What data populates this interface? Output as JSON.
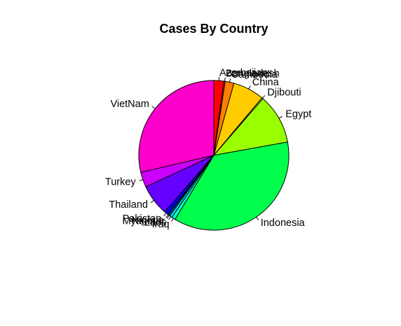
{
  "chart_data": {
    "type": "pie",
    "title": "Cases By Country",
    "start": "12 o'clock",
    "direction": "clockwise",
    "slices": [
      {
        "label": "Azerbaijan",
        "value": 8,
        "color": "#FF0000"
      },
      {
        "label": "Bangladesh",
        "value": 1,
        "color": "#FF3300"
      },
      {
        "label": "Cambodia",
        "value": 7,
        "color": "#FF8000"
      },
      {
        "label": "China",
        "value": 25,
        "color": "#FFCC00"
      },
      {
        "label": "Djibouti",
        "value": 1,
        "color": "#E6FF00"
      },
      {
        "label": "Egypt",
        "value": 40,
        "color": "#99FF00"
      },
      {
        "label": "Indonesia",
        "value": 135,
        "color": "#00FF4D"
      },
      {
        "label": "Iraq",
        "value": 3,
        "color": "#00FFCC"
      },
      {
        "label": "Laos",
        "value": 2,
        "color": "#00E6FF"
      },
      {
        "label": "Myanmar",
        "value": 1,
        "color": "#0099FF"
      },
      {
        "label": "Nigeria",
        "value": 1,
        "color": "#004DFF"
      },
      {
        "label": "Pakistan",
        "value": 3,
        "color": "#0000FF"
      },
      {
        "label": "Thailand",
        "value": 25,
        "color": "#6600FF"
      },
      {
        "label": "Turkey",
        "value": 12,
        "color": "#CC00FF"
      },
      {
        "label": "VietNam",
        "value": 106,
        "color": "#FF00CC"
      }
    ]
  }
}
